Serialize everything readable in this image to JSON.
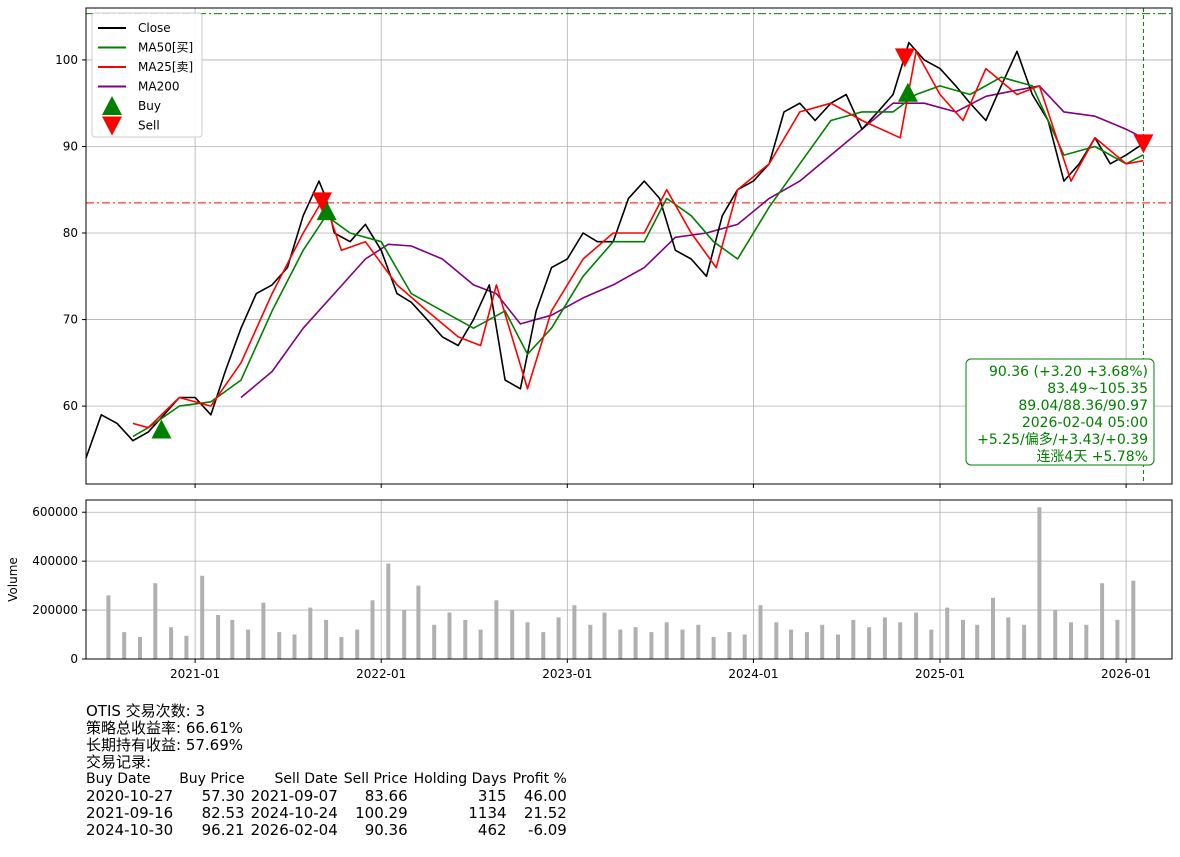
{
  "chart_data": [
    {
      "type": "line",
      "ticker": "OTIS",
      "ylim": [
        51,
        106
      ],
      "yticks": [
        60,
        70,
        80,
        90,
        100
      ],
      "xlim": [
        "2020-06-01",
        "2026-04-01"
      ],
      "xticks": [
        "2021-01",
        "2022-01",
        "2023-01",
        "2024-01",
        "2025-01",
        "2026-01"
      ],
      "grid": true,
      "legend_position": "top-left",
      "legend": [
        "Close",
        "MA50[买]",
        "MA25[卖]",
        "MA200",
        "Buy",
        "Sell"
      ],
      "colors": {
        "close": "#000000",
        "ma50": "#008000",
        "ma25": "#ff0000",
        "ma200": "#800080",
        "buy": "#008000",
        "sell": "#ff0000",
        "hline_high": "#008000",
        "hline_low": "#ff0000",
        "vline": "#008000"
      },
      "series": [
        {
          "name": "Close",
          "x": [
            "2020-06-01",
            "2020-07-01",
            "2020-08-01",
            "2020-09-01",
            "2020-10-01",
            "2020-11-01",
            "2020-12-01",
            "2021-01-01",
            "2021-02-01",
            "2021-03-01",
            "2021-04-01",
            "2021-05-01",
            "2021-06-01",
            "2021-07-01",
            "2021-08-01",
            "2021-09-01",
            "2021-09-15",
            "2021-10-01",
            "2021-11-01",
            "2021-12-01",
            "2022-01-01",
            "2022-02-01",
            "2022-03-01",
            "2022-04-01",
            "2022-05-01",
            "2022-06-01",
            "2022-07-01",
            "2022-08-01",
            "2022-09-01",
            "2022-10-01",
            "2022-11-01",
            "2022-12-01",
            "2023-01-01",
            "2023-02-01",
            "2023-03-01",
            "2023-04-01",
            "2023-05-01",
            "2023-06-01",
            "2023-07-01",
            "2023-08-01",
            "2023-09-01",
            "2023-10-01",
            "2023-11-01",
            "2023-12-01",
            "2024-01-01",
            "2024-02-01",
            "2024-03-01",
            "2024-04-01",
            "2024-05-01",
            "2024-06-01",
            "2024-07-01",
            "2024-08-01",
            "2024-09-01",
            "2024-10-01",
            "2024-11-01",
            "2024-12-01",
            "2025-01-01",
            "2025-02-01",
            "2025-03-01",
            "2025-04-01",
            "2025-05-01",
            "2025-06-01",
            "2025-07-01",
            "2025-08-01",
            "2025-09-01",
            "2025-10-01",
            "2025-11-01",
            "2025-12-01",
            "2026-01-01",
            "2026-02-04"
          ],
          "values": [
            54,
            59,
            58,
            56,
            57,
            59,
            61,
            61,
            59,
            64,
            69,
            73,
            74,
            76,
            82,
            86,
            84,
            80,
            79,
            81,
            78,
            73,
            72,
            70,
            68,
            67,
            70,
            74,
            63,
            62,
            71,
            76,
            77,
            80,
            79,
            79,
            84,
            86,
            84,
            78,
            77,
            75,
            82,
            85,
            86,
            88,
            94,
            95,
            93,
            95,
            96,
            92,
            94,
            96,
            102,
            100,
            99,
            97,
            95,
            93,
            97,
            101,
            96,
            93,
            86,
            88,
            91,
            88,
            89,
            90.36
          ]
        },
        {
          "name": "MA50[买]",
          "x": [
            "2020-09-01",
            "2020-10-01",
            "2020-12-01",
            "2021-02-01",
            "2021-04-01",
            "2021-06-01",
            "2021-08-01",
            "2021-09-15",
            "2021-11-01",
            "2022-01-01",
            "2022-03-01",
            "2022-05-01",
            "2022-07-01",
            "2022-09-01",
            "2022-10-15",
            "2022-12-01",
            "2023-02-01",
            "2023-04-01",
            "2023-06-01",
            "2023-07-15",
            "2023-09-01",
            "2023-10-15",
            "2023-12-01",
            "2024-02-01",
            "2024-04-01",
            "2024-06-01",
            "2024-08-01",
            "2024-10-01",
            "2024-11-15",
            "2025-01-01",
            "2025-03-01",
            "2025-05-01",
            "2025-07-01",
            "2025-09-01",
            "2025-11-01",
            "2026-01-01",
            "2026-02-04"
          ],
          "values": [
            56.5,
            57.5,
            60,
            60.5,
            63,
            71,
            78,
            82,
            80,
            79,
            73,
            71,
            69,
            71,
            66,
            69,
            75,
            79,
            79,
            84,
            82,
            79,
            77,
            83,
            88,
            93,
            94,
            94,
            96,
            97,
            96,
            98,
            97,
            89,
            90,
            88,
            89.04
          ]
        },
        {
          "name": "MA25[卖]",
          "x": [
            "2020-09-01",
            "2020-10-01",
            "2020-12-01",
            "2021-02-01",
            "2021-04-01",
            "2021-06-01",
            "2021-08-01",
            "2021-09-10",
            "2021-10-15",
            "2021-12-01",
            "2022-02-01",
            "2022-04-01",
            "2022-06-01",
            "2022-07-15",
            "2022-08-15",
            "2022-10-15",
            "2022-12-01",
            "2023-02-01",
            "2023-04-01",
            "2023-06-01",
            "2023-07-15",
            "2023-09-01",
            "2023-10-20",
            "2023-12-01",
            "2024-02-01",
            "2024-04-01",
            "2024-06-01",
            "2024-08-01",
            "2024-10-15",
            "2024-11-15",
            "2025-01-01",
            "2025-02-15",
            "2025-04-01",
            "2025-06-01",
            "2025-07-15",
            "2025-09-15",
            "2025-11-01",
            "2026-01-01",
            "2026-02-04"
          ],
          "values": [
            58,
            57.5,
            61,
            60,
            65,
            73,
            80,
            84,
            78,
            79,
            74,
            71,
            68,
            67,
            74,
            62,
            71,
            77,
            80,
            80,
            85,
            80,
            76,
            85,
            88,
            94,
            95,
            93,
            91,
            101,
            96,
            93,
            99,
            96,
            97,
            86,
            91,
            88,
            88.36
          ]
        },
        {
          "name": "MA200",
          "x": [
            "2021-04-01",
            "2021-06-01",
            "2021-08-01",
            "2021-10-01",
            "2021-12-01",
            "2022-01-15",
            "2022-03-01",
            "2022-05-01",
            "2022-07-01",
            "2022-08-15",
            "2022-10-01",
            "2022-12-01",
            "2023-02-01",
            "2023-04-01",
            "2023-06-01",
            "2023-08-01",
            "2023-10-01",
            "2023-12-01",
            "2024-02-01",
            "2024-04-01",
            "2024-06-01",
            "2024-08-01",
            "2024-10-01",
            "2024-12-01",
            "2025-02-01",
            "2025-04-01",
            "2025-06-01",
            "2025-07-15",
            "2025-09-01",
            "2025-11-01",
            "2026-01-01",
            "2026-02-04"
          ],
          "values": [
            61,
            64,
            69,
            73,
            77,
            78.7,
            78.5,
            77,
            74,
            73,
            69.5,
            70.5,
            72.5,
            74,
            76,
            79.5,
            80,
            81,
            84,
            86,
            89,
            92,
            95,
            95,
            94,
            95.8,
            96.5,
            97,
            94,
            93.5,
            92,
            90.97
          ]
        }
      ],
      "buy_markers": [
        {
          "date": "2020-10-27",
          "price": 57.3
        },
        {
          "date": "2021-09-16",
          "price": 82.53
        },
        {
          "date": "2024-10-30",
          "price": 96.21
        }
      ],
      "sell_markers": [
        {
          "date": "2021-09-07",
          "price": 83.66
        },
        {
          "date": "2024-10-24",
          "price": 100.29
        },
        {
          "date": "2026-02-04",
          "price": 90.36
        }
      ],
      "hlines": {
        "high": 105.35,
        "low": 83.49
      },
      "vline_date": "2026-02-04",
      "info_box": [
        "90.36 (+3.20 +3.68%)",
        "83.49~105.35",
        "89.04/88.36/90.97",
        "2026-02-04 05:00",
        "+5.25/偏多/+3.43/+0.39",
        "连涨4天 +5.78%"
      ]
    },
    {
      "type": "bar",
      "ylabel": "Volume",
      "ylim": [
        0,
        650000
      ],
      "yticks": [
        "0",
        "200000",
        "400000",
        "600000"
      ],
      "xticks": [
        "2021-01",
        "2022-01",
        "2023-01",
        "2024-01",
        "2025-01",
        "2026-01"
      ],
      "bar_color": "#b0b0b0",
      "x": [
        "2020-07",
        "2020-08",
        "2020-09",
        "2020-10",
        "2020-11",
        "2020-12",
        "2021-01",
        "2021-02",
        "2021-03",
        "2021-04",
        "2021-05",
        "2021-06",
        "2021-07",
        "2021-08",
        "2021-09",
        "2021-10",
        "2021-11",
        "2021-12",
        "2022-01",
        "2022-02",
        "2022-03",
        "2022-04",
        "2022-05",
        "2022-06",
        "2022-07",
        "2022-08",
        "2022-09",
        "2022-10",
        "2022-11",
        "2022-12",
        "2023-01",
        "2023-02",
        "2023-03",
        "2023-04",
        "2023-05",
        "2023-06",
        "2023-07",
        "2023-08",
        "2023-09",
        "2023-10",
        "2023-11",
        "2023-12",
        "2024-01",
        "2024-02",
        "2024-03",
        "2024-04",
        "2024-05",
        "2024-06",
        "2024-07",
        "2024-08",
        "2024-09",
        "2024-10",
        "2024-11",
        "2024-12",
        "2025-01",
        "2025-02",
        "2025-03",
        "2025-04",
        "2025-05",
        "2025-06",
        "2025-07",
        "2025-08",
        "2025-09",
        "2025-10",
        "2025-11",
        "2025-12",
        "2026-01"
      ],
      "values": [
        260000,
        110000,
        90000,
        310000,
        130000,
        95000,
        340000,
        180000,
        160000,
        120000,
        230000,
        110000,
        100000,
        210000,
        160000,
        90000,
        120000,
        240000,
        390000,
        200000,
        300000,
        140000,
        190000,
        160000,
        120000,
        240000,
        200000,
        150000,
        110000,
        170000,
        220000,
        140000,
        190000,
        120000,
        130000,
        110000,
        150000,
        120000,
        140000,
        90000,
        110000,
        100000,
        220000,
        150000,
        120000,
        110000,
        140000,
        100000,
        160000,
        130000,
        170000,
        150000,
        190000,
        120000,
        210000,
        160000,
        140000,
        250000,
        170000,
        140000,
        620000,
        200000,
        150000,
        140000,
        310000,
        160000,
        320000
      ]
    }
  ],
  "summary": {
    "lines": [
      "OTIS 交易次数: 3",
      "策略总收益率: 66.61%",
      "长期持有收益: 57.69%",
      "交易记录:"
    ],
    "table_headers": [
      "Buy Date",
      "Buy Price",
      "Sell Date",
      "Sell Price",
      "Holding Days",
      "Profit %"
    ],
    "trades": [
      [
        "2020-10-27",
        "57.30",
        "2021-09-07",
        "83.66",
        "315",
        "46.00"
      ],
      [
        "2021-09-16",
        "82.53",
        "2024-10-24",
        "100.29",
        "1134",
        "21.52"
      ],
      [
        "2024-10-30",
        "96.21",
        "2026-02-04",
        "90.36",
        "462",
        "-6.09"
      ]
    ]
  }
}
